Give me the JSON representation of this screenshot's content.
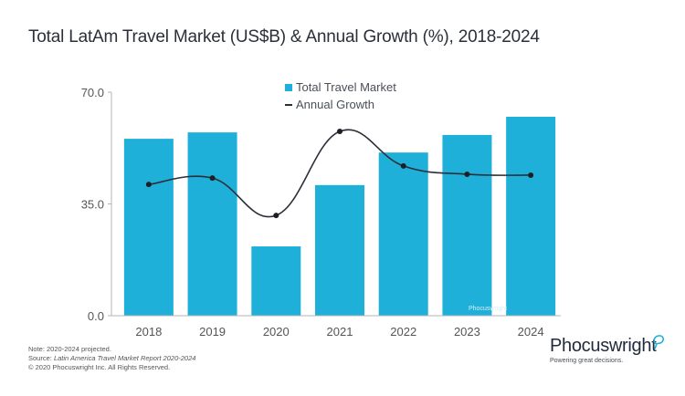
{
  "title": "Total LatAm Travel Market (US$B) & Annual Growth (%), 2018-2024",
  "notes": {
    "note": "Note: 2020-2024 projected.",
    "source_prefix": "Source: ",
    "source_title": "Latin America Travel Market Report 2020-2024",
    "copyright": "© 2020  Phocuswright Inc. All Rights Reserved."
  },
  "logo": {
    "name": "Phocuswright",
    "tagline": "Powering great decisions.",
    "watermark": "Phocuswright"
  },
  "colors": {
    "bar": "#1fb0da",
    "line": "#2b2f38",
    "axis": "#b5b5b5",
    "swirl": "#1fb0da"
  },
  "chart_data": {
    "type": "bar",
    "title": "Total LatAm Travel Market (US$B) & Annual Growth (%), 2018-2024",
    "xlabel": "",
    "ylabel": "",
    "ylim": [
      0,
      70
    ],
    "yticks": [
      0,
      35,
      70
    ],
    "ytick_labels": [
      "0.0",
      "35.0",
      "70.0"
    ],
    "grid": false,
    "legend_position": "top-center",
    "categories": [
      "2018",
      "2019",
      "2020",
      "2021",
      "2022",
      "2023",
      "2024"
    ],
    "series": [
      {
        "name": "Total Travel Market",
        "type": "bar",
        "values": [
          55.4,
          57.4,
          21.7,
          40.9,
          51.1,
          56.6,
          62.3
        ]
      },
      {
        "name": "Annual Growth",
        "type": "line",
        "smooth": true,
        "values": [
          41.1,
          43.1,
          31.4,
          57.7,
          46.9,
          44.3,
          44.0
        ]
      }
    ]
  }
}
